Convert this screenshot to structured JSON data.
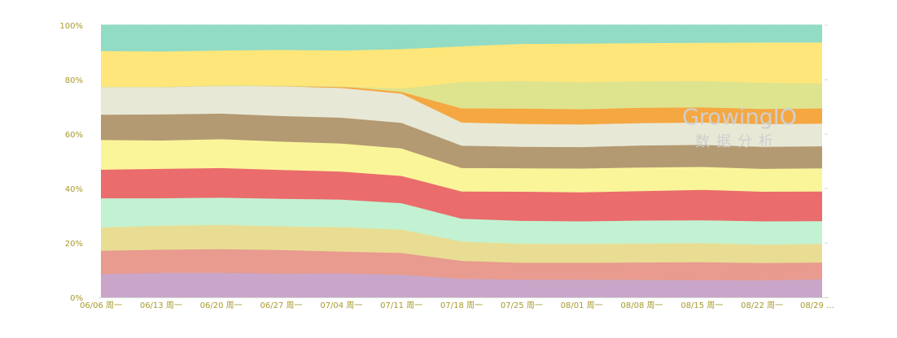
{
  "chart_data": {
    "type": "area",
    "stacking": "percent",
    "x": [
      "06/06 周一",
      "06/13 周一",
      "06/20 周一",
      "06/27 周一",
      "07/04 周一",
      "07/11 周一",
      "07/18 周一",
      "07/25 周一",
      "08/01 周一",
      "08/08 周一",
      "08/15 周一",
      "08/22 周一",
      "08/29 …"
    ],
    "y_ticks": [
      "0%",
      "20%",
      "40%",
      "60%",
      "80%",
      "100%"
    ],
    "ylim": [
      0,
      100
    ],
    "grid": "horizontal-dashed",
    "legend": "none",
    "series": [
      {
        "color": "#c9a6c9",
        "values": [
          8.5,
          9.0,
          9.0,
          8.7,
          8.8,
          8.3,
          6.8,
          6.5,
          6.5,
          6.4,
          6.3,
          6.2,
          6.6
        ]
      },
      {
        "color": "#e89b8e",
        "values": [
          8.6,
          8.5,
          8.7,
          8.7,
          8.0,
          8.0,
          6.6,
          6.2,
          6.2,
          6.4,
          6.6,
          6.4,
          6.2
        ]
      },
      {
        "color": "#e9dd94",
        "values": [
          8.6,
          8.8,
          8.9,
          8.7,
          9.0,
          8.6,
          7.1,
          7.0,
          6.9,
          7.0,
          7.0,
          6.8,
          6.8
        ]
      },
      {
        "color": "#c2f2d2",
        "values": [
          10.7,
          10.1,
          10.0,
          10.1,
          10.1,
          9.7,
          8.4,
          8.4,
          8.3,
          8.4,
          8.4,
          8.5,
          8.4
        ]
      },
      {
        "color": "#ea6c6c",
        "values": [
          10.5,
          10.8,
          10.9,
          10.6,
          10.3,
          10.0,
          10.0,
          10.7,
          10.7,
          10.8,
          11.2,
          10.9,
          10.9
        ]
      },
      {
        "color": "#fbf59a",
        "values": [
          10.9,
          10.4,
          10.6,
          10.4,
          10.3,
          10.1,
          8.6,
          8.6,
          8.7,
          8.7,
          8.4,
          8.4,
          8.5
        ]
      },
      {
        "color": "#b39a72",
        "values": [
          9.3,
          9.6,
          9.4,
          9.4,
          9.5,
          9.4,
          8.2,
          7.9,
          7.9,
          8.1,
          8.1,
          8.1,
          8.1
        ]
      },
      {
        "color": "#e8e8d6",
        "values": [
          10.3,
          10.2,
          10.4,
          10.9,
          10.9,
          10.7,
          8.5,
          8.4,
          8.3,
          8.2,
          8.2,
          8.3,
          8.3
        ]
      },
      {
        "color": "#f5a742",
        "values": [
          0.0,
          0.0,
          0.0,
          0.3,
          0.6,
          0.7,
          5.2,
          5.6,
          5.6,
          5.6,
          5.6,
          5.6,
          5.6
        ]
      },
      {
        "color": "#dee38e",
        "values": [
          0.0,
          0.0,
          0.0,
          0.0,
          0.0,
          1.2,
          9.7,
          10.2,
          9.9,
          9.8,
          9.7,
          9.6,
          9.2
        ]
      },
      {
        "color": "#fee67a",
        "values": [
          13.1,
          12.9,
          12.8,
          13.1,
          13.2,
          14.5,
          13.1,
          13.6,
          14.2,
          14.0,
          14.0,
          14.8,
          15.0
        ]
      },
      {
        "color": "#92dbc4",
        "values": [
          9.5,
          9.7,
          9.3,
          9.1,
          9.3,
          8.8,
          7.8,
          6.9,
          6.8,
          6.6,
          6.5,
          6.4,
          6.4
        ]
      }
    ]
  },
  "watermark": {
    "brand": "GrowingIO",
    "subtitle": "数据分析"
  }
}
